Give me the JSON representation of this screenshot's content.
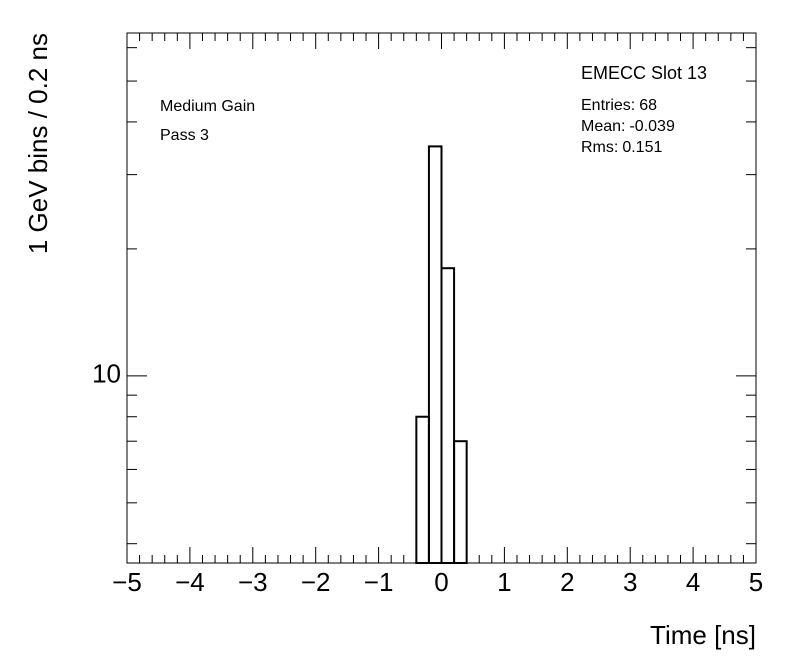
{
  "chart_data": {
    "type": "histogram",
    "title": "EMECC Slot 13",
    "annotations": [
      "Medium Gain",
      "Pass 3"
    ],
    "stats": [
      {
        "label": "Entries:",
        "value": 68
      },
      {
        "label": "Mean:",
        "value": -0.039
      },
      {
        "label": "Rms:",
        "value": 0.151
      }
    ],
    "x_label": "Time [ns]",
    "y_label": "1 GeV bins / 0.2 ns",
    "bins": [
      -0.4,
      -0.2,
      0,
      0.2,
      0.4
    ],
    "values": [
      8,
      35,
      18,
      7
    ],
    "color": "#000000",
    "xlim": [
      -5,
      5
    ],
    "xticks": [
      {
        "value": -5,
        "label": "−5"
      },
      {
        "value": -4,
        "label": "−4"
      },
      {
        "value": -3,
        "label": "−3"
      },
      {
        "value": -2,
        "label": "−2"
      },
      {
        "value": -1,
        "label": "−1"
      },
      0,
      1,
      2,
      3,
      4,
      5
    ],
    "ylim": [
      3.6,
      65
    ],
    "yticks": [
      10
    ],
    "log_y": true,
    "grid": false
  }
}
